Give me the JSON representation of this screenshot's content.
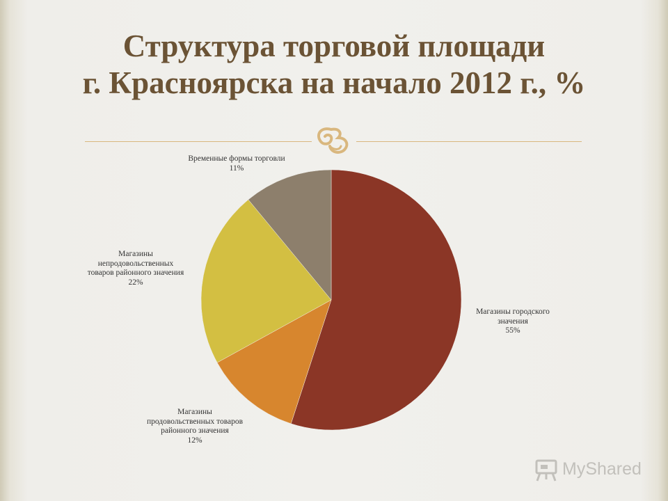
{
  "title": {
    "line1": "Структура торговой площади",
    "line2": "г. Красноярска на начало 2012 г., %"
  },
  "chart_data": {
    "type": "pie",
    "start_angle_deg": 0,
    "direction": "clockwise",
    "slices": [
      {
        "label_lines": [
          "Магазины городского",
          "значения"
        ],
        "value": 55,
        "value_label": "55%",
        "color": "#8b3626"
      },
      {
        "label_lines": [
          "Магазины",
          "продовольственных товаров",
          "районного значения"
        ],
        "value": 12,
        "value_label": "12%",
        "color": "#d7862e"
      },
      {
        "label_lines": [
          "Магазины",
          "непродовольственных",
          "товаров районного значения"
        ],
        "value": 22,
        "value_label": "22%",
        "color": "#d3bf42"
      },
      {
        "label_lines": [
          "Временные формы торговли"
        ],
        "value": 11,
        "value_label": "11%",
        "color": "#8d7f6c"
      }
    ]
  },
  "ornament": {
    "icon": "scroll-flourish-icon",
    "color": "#d9b77e"
  },
  "watermark": {
    "text": "MyShared",
    "icon": "presentation-board-icon",
    "color": "#c2c0bb"
  }
}
